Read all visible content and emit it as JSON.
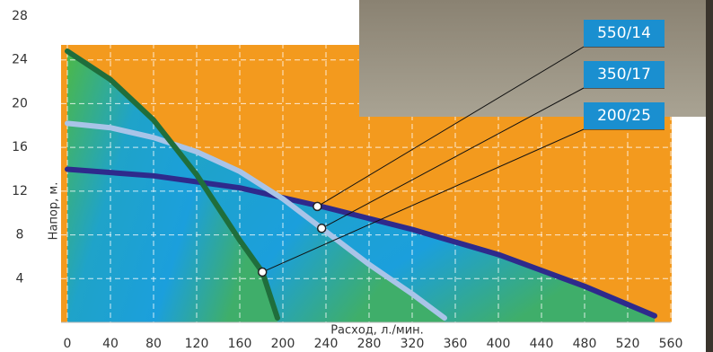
{
  "chart_data": {
    "type": "line",
    "x_label": "Расход, л./мин.",
    "y_label": "Напор, м.",
    "xlim": [
      0,
      560
    ],
    "ylim": [
      0,
      28
    ],
    "xticks": [
      0,
      40,
      80,
      120,
      160,
      200,
      240,
      280,
      320,
      360,
      400,
      440,
      480,
      520,
      560
    ],
    "yticks": [
      4,
      8,
      12,
      16,
      20,
      24,
      28
    ],
    "grid": true,
    "series": [
      {
        "name": "550/14",
        "color": "#2e2a8c",
        "x": [
          0,
          80,
          160,
          240,
          320,
          400,
          480,
          545
        ],
        "values": [
          14,
          13.4,
          12.3,
          10.5,
          8.5,
          6.2,
          3.3,
          0.6
        ],
        "marker": [
          232,
          10.6
        ]
      },
      {
        "name": "350/17",
        "color": "#a9c4e8",
        "x": [
          0,
          40,
          80,
          120,
          160,
          200,
          240,
          280,
          320,
          350
        ],
        "values": [
          18.2,
          17.8,
          16.9,
          15.6,
          13.8,
          11.3,
          8.3,
          5.3,
          2.6,
          0.4
        ],
        "marker": [
          236,
          8.6
        ]
      },
      {
        "name": "200/25",
        "color": "#1f6e3c",
        "x": [
          0,
          40,
          80,
          120,
          160,
          181,
          195
        ],
        "values": [
          24.8,
          22.2,
          18.5,
          13.5,
          7.5,
          4.6,
          0.4
        ],
        "marker": [
          181,
          4.6
        ]
      }
    ]
  }
}
